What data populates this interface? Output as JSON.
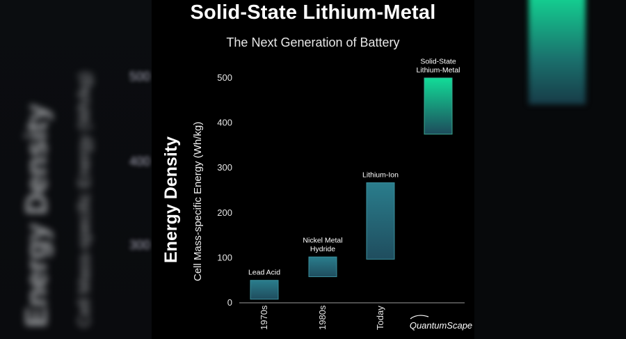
{
  "side_panels": {
    "left_blur_text": [
      "Energy Density",
      "Cell Mass-specific Energy (Wh/kg)"
    ],
    "left_blur_ticks": [
      "500",
      "400",
      "300"
    ]
  },
  "chart_data": {
    "type": "bar",
    "title": "Solid-State Lithium-Metal",
    "subtitle": "The Next Generation of Battery",
    "ylabel_main": "Energy Density",
    "ylabel": "Cell Mass-specific Energy (Wh/kg)",
    "xlabel": "",
    "ylim": [
      0,
      500
    ],
    "yticks": [
      0,
      100,
      200,
      300,
      400,
      500
    ],
    "grid": false,
    "categories": [
      "1970s",
      "1980s",
      "Today",
      "QuantumScape"
    ],
    "series": [
      {
        "labels": [
          "Lead Acid",
          "Nickel Metal Hydride",
          "Lithium-Ion",
          "Solid-State Lithium-Metal"
        ],
        "ranges": [
          [
            8,
            50
          ],
          [
            58,
            102
          ],
          [
            97,
            267
          ],
          [
            375,
            500
          ]
        ]
      }
    ],
    "colors": {
      "bar_top": "#2a7d8c",
      "bar_bottom": "#1f4d5e",
      "highlight_top": "#12dc98",
      "highlight_bottom": "#1d4b5b",
      "axis": "#9a9a9a"
    }
  }
}
